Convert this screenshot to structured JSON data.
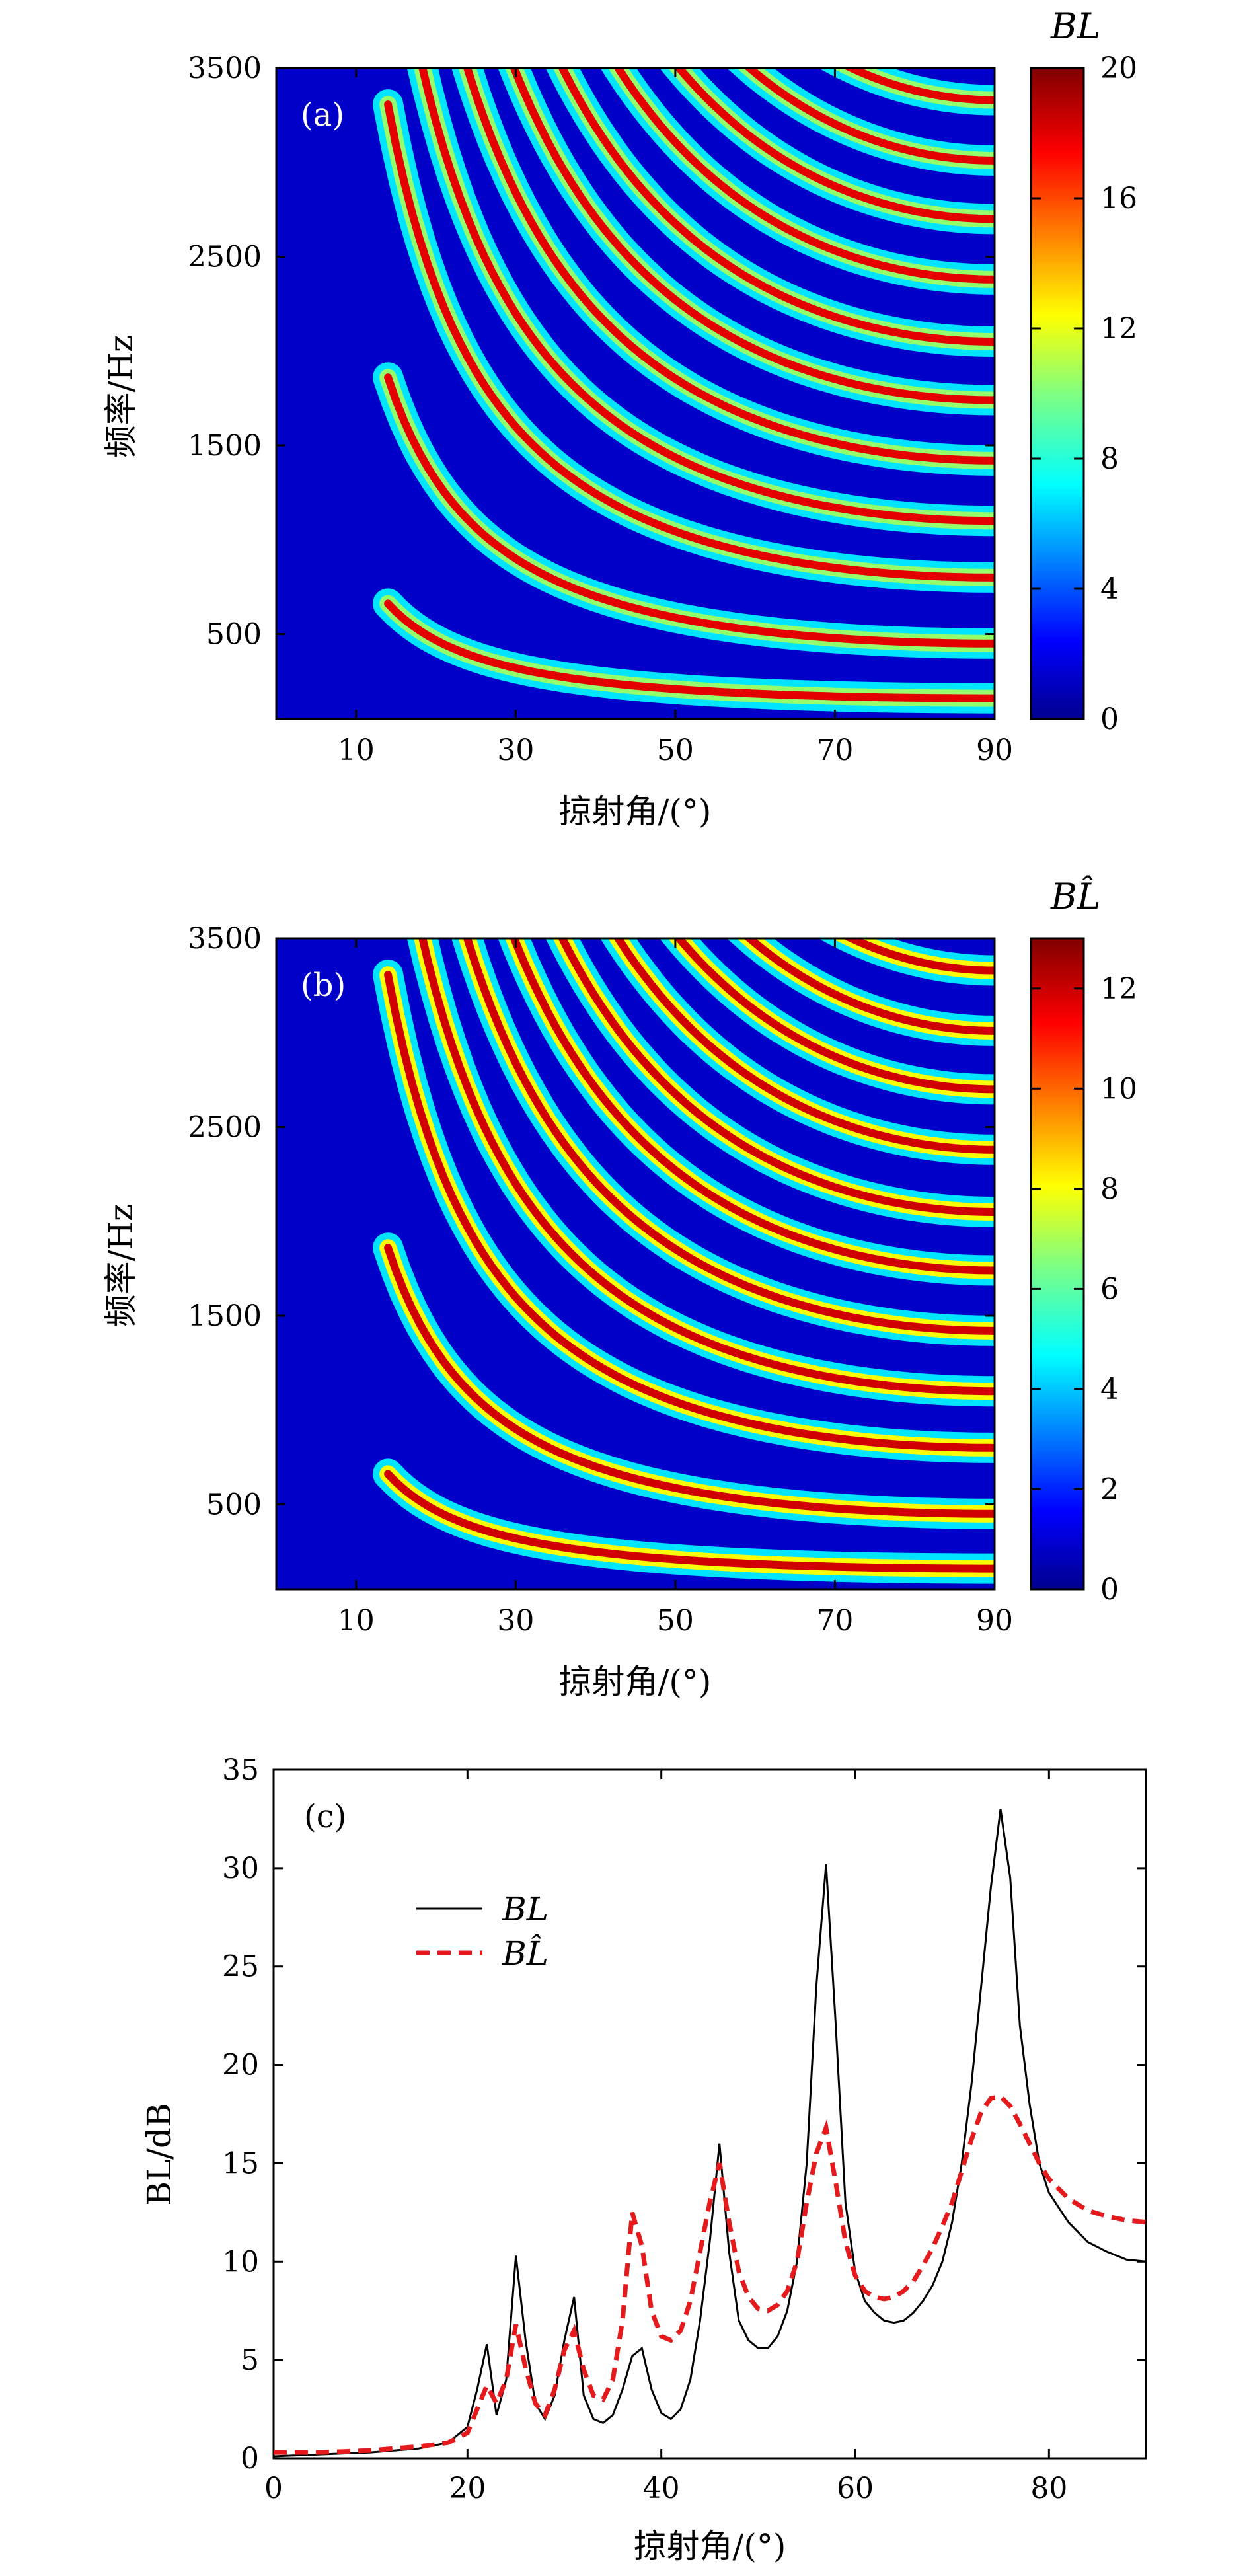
{
  "chart_data": [
    {
      "type": "heatmap",
      "panel_label": "(a)",
      "xlabel": "掠射角/(°)",
      "ylabel": "频率/Hz",
      "colorbar_label": "BL",
      "x_ticks": [
        "10",
        "30",
        "50",
        "70",
        "90"
      ],
      "y_ticks": [
        "500",
        "1500",
        "2500",
        "3500"
      ],
      "colorbar_ticks": [
        "0",
        "4",
        "8",
        "12",
        "16",
        "20"
      ],
      "xlim": [
        0,
        90
      ],
      "ylim": [
        50,
        3500
      ],
      "clim": [
        0,
        20
      ],
      "colormap": "jet",
      "resonance_bands_hz_at_90deg": [
        160,
        450,
        800,
        1100,
        1420,
        1740,
        2050,
        2380,
        2700,
        3010,
        3330
      ],
      "notes": "Curved resonance bands; band frequency increases as grazing angle decreases. Values near 0 below ~20°."
    },
    {
      "type": "heatmap",
      "panel_label": "(b)",
      "xlabel": "掠射角/(°)",
      "ylabel": "频率/Hz",
      "colorbar_label": "BL̂",
      "x_ticks": [
        "10",
        "30",
        "50",
        "70",
        "90"
      ],
      "y_ticks": [
        "500",
        "1500",
        "2500",
        "3500"
      ],
      "colorbar_ticks": [
        "0",
        "2",
        "4",
        "6",
        "8",
        "10",
        "12"
      ],
      "xlim": [
        0,
        90
      ],
      "ylim": [
        50,
        3500
      ],
      "clim": [
        0,
        13
      ],
      "colormap": "jet",
      "resonance_bands_hz_at_90deg": [
        160,
        450,
        800,
        1100,
        1420,
        1740,
        2050,
        2380,
        2700,
        3010,
        3330
      ]
    },
    {
      "type": "line",
      "panel_label": "(c)",
      "xlabel": "掠射角/(°)",
      "ylabel": "BL/dB",
      "xlim": [
        0,
        90
      ],
      "ylim": [
        0,
        35
      ],
      "x_ticks": [
        "0",
        "20",
        "40",
        "60",
        "80"
      ],
      "y_ticks": [
        "0",
        "5",
        "10",
        "15",
        "20",
        "25",
        "30",
        "35"
      ],
      "legend_position": "upper-left",
      "series": [
        {
          "name": "BL",
          "color": "#000000",
          "style": "solid",
          "x": [
            0,
            5,
            10,
            15,
            18,
            20,
            21,
            22,
            23,
            24,
            25,
            26,
            27,
            28,
            29,
            30,
            31,
            32,
            33,
            34,
            35,
            36,
            37,
            38,
            39,
            40,
            41,
            42,
            43,
            44,
            45,
            46,
            47,
            48,
            49,
            50,
            51,
            52,
            53,
            54,
            55,
            56,
            57,
            58,
            59,
            60,
            61,
            62,
            63,
            64,
            65,
            66,
            67,
            68,
            69,
            70,
            71,
            72,
            73,
            74,
            75,
            76,
            77,
            78,
            79,
            80,
            82,
            84,
            86,
            88,
            90
          ],
          "y": [
            0.1,
            0.2,
            0.3,
            0.5,
            0.8,
            1.6,
            3.5,
            5.8,
            2.2,
            4.0,
            10.3,
            6.0,
            2.8,
            2.0,
            3.2,
            6.0,
            8.2,
            3.2,
            2.0,
            1.8,
            2.2,
            3.5,
            5.2,
            5.6,
            3.5,
            2.3,
            2.0,
            2.5,
            4.0,
            7.0,
            11.0,
            16.0,
            10.5,
            7.0,
            6.0,
            5.6,
            5.6,
            6.2,
            7.5,
            10.0,
            15.0,
            24.0,
            30.2,
            22.0,
            13.0,
            9.5,
            8.0,
            7.4,
            7.0,
            6.9,
            7.0,
            7.4,
            8.0,
            8.8,
            10.0,
            12.0,
            15.0,
            19.0,
            24.0,
            29.0,
            33.0,
            29.5,
            22.0,
            18.0,
            15.0,
            13.5,
            12.0,
            11.0,
            10.5,
            10.1,
            10.0
          ]
        },
        {
          "name": "BL̂",
          "color": "#e41a1c",
          "style": "dashed",
          "x": [
            0,
            5,
            10,
            15,
            18,
            20,
            21,
            22,
            23,
            24,
            25,
            26,
            27,
            28,
            29,
            30,
            31,
            32,
            33,
            34,
            35,
            36,
            37,
            38,
            39,
            40,
            41,
            42,
            43,
            44,
            45,
            46,
            47,
            48,
            49,
            50,
            51,
            52,
            53,
            54,
            55,
            56,
            57,
            58,
            59,
            60,
            61,
            62,
            63,
            64,
            65,
            66,
            67,
            68,
            69,
            70,
            71,
            72,
            73,
            74,
            75,
            76,
            77,
            78,
            79,
            80,
            82,
            84,
            86,
            88,
            90
          ],
          "y": [
            0.3,
            0.3,
            0.4,
            0.6,
            0.8,
            1.3,
            2.5,
            3.7,
            2.8,
            4.0,
            6.8,
            4.6,
            2.8,
            2.2,
            3.5,
            5.5,
            6.5,
            4.5,
            3.2,
            3.0,
            4.0,
            7.0,
            12.5,
            10.8,
            7.5,
            6.2,
            6.0,
            6.5,
            8.0,
            10.5,
            13.0,
            15.0,
            12.0,
            9.5,
            8.2,
            7.6,
            7.5,
            7.8,
            8.5,
            10.0,
            13.0,
            15.5,
            16.8,
            14.0,
            11.0,
            9.3,
            8.5,
            8.2,
            8.1,
            8.2,
            8.5,
            9.0,
            9.8,
            10.7,
            11.8,
            13.0,
            14.6,
            16.2,
            17.6,
            18.3,
            18.4,
            17.9,
            17.0,
            16.0,
            15.0,
            14.2,
            13.2,
            12.6,
            12.3,
            12.1,
            12.0
          ]
        }
      ]
    }
  ]
}
